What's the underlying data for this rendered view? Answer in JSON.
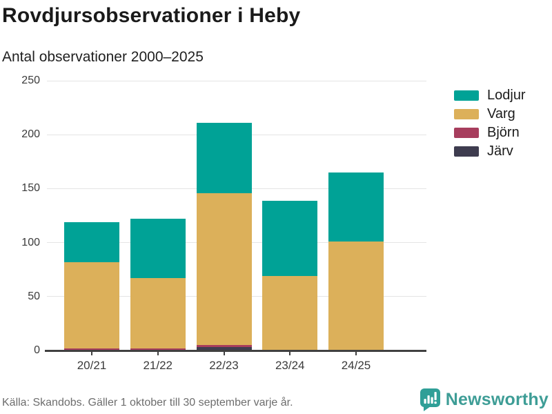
{
  "header": {
    "title": "Rovdjursobservationer i Heby",
    "subtitle": "Antal observationer 2000–2025"
  },
  "chart_data": {
    "type": "bar",
    "stacked": true,
    "title": "Rovdjursobservationer i Heby",
    "subtitle": "Antal observationer 2000–2025",
    "categories": [
      "20/21",
      "21/22",
      "22/23",
      "23/24",
      "24/25"
    ],
    "series": [
      {
        "name": "Lodjur",
        "color": "#00A296",
        "values": [
          37,
          55,
          65,
          70,
          64
        ]
      },
      {
        "name": "Varg",
        "color": "#DCB05A",
        "values": [
          80,
          65,
          141,
          69,
          101
        ]
      },
      {
        "name": "Björn",
        "color": "#A73D5D",
        "values": [
          2,
          2,
          2,
          0,
          0
        ]
      },
      {
        "name": "Järv",
        "color": "#3E3C4F",
        "values": [
          0,
          0,
          3,
          0,
          0
        ]
      }
    ],
    "stack_order_bottom_to_top": [
      "Järv",
      "Björn",
      "Varg",
      "Lodjur"
    ],
    "totals": [
      119,
      122,
      211,
      139,
      165
    ],
    "xlabel": "",
    "ylabel": "",
    "ylim": [
      0,
      250
    ],
    "yticks": [
      0,
      50,
      100,
      150,
      200,
      250
    ],
    "grid": true,
    "legend_position": "right"
  },
  "footer": {
    "source": "Källa: Skandobs. Gäller 1 oktober till 30 september varje år.",
    "brand": "Newsworthy"
  },
  "colors": {
    "accent_teal": "#00A296",
    "gold": "#DCB05A",
    "maroon": "#A73D5D",
    "dark": "#3E3C4F",
    "brand_teal": "#3E9D96",
    "grid": "#E4E4E4",
    "axis": "#404040",
    "text_muted": "#6D6D6D"
  }
}
